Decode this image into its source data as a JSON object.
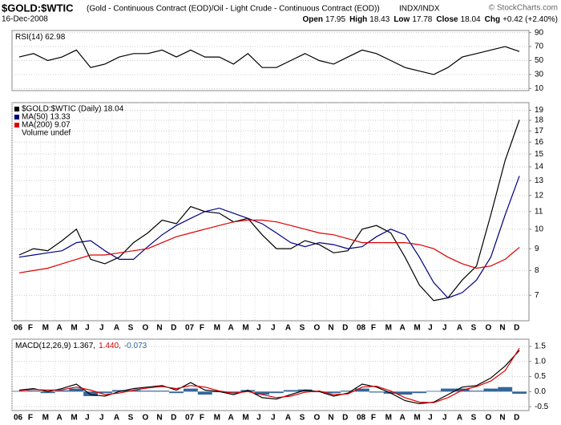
{
  "header": {
    "symbol": "$GOLD:$WTIC",
    "description": "(Gold - Continuous Contract (EOD)/Oil - Light Crude - Continuous Contract (EOD))",
    "exchange": "INDX/INDX",
    "date": "16-Dec-2008",
    "copyright": "© StockCharts.com",
    "quote": [
      {
        "label": "Open",
        "value": "17.95"
      },
      {
        "label": "High",
        "value": "18.43"
      },
      {
        "label": "Low",
        "value": "17.78"
      },
      {
        "label": "Close",
        "value": "18.04"
      },
      {
        "label": "Chg",
        "value": "+0.42 (+2.40%)"
      }
    ]
  },
  "chart_data": [
    {
      "type": "line",
      "legend": "inline",
      "ylim": [
        7,
        93
      ],
      "yticks": [
        10,
        30,
        50,
        70,
        90
      ],
      "grid": true,
      "series": [
        {
          "name": "RSI(14) 62.98",
          "color": "#000000",
          "values": [
            55,
            60,
            50,
            55,
            65,
            40,
            45,
            55,
            60,
            60,
            65,
            55,
            65,
            55,
            55,
            45,
            60,
            40,
            40,
            50,
            60,
            50,
            45,
            55,
            65,
            60,
            50,
            40,
            35,
            30,
            40,
            55,
            60,
            65,
            70,
            62.98
          ]
        }
      ]
    },
    {
      "type": "line",
      "legend": "stacked",
      "log_scale": true,
      "ylim": [
        6.1,
        19.8
      ],
      "yticks": [
        7,
        8,
        9,
        10,
        11,
        12,
        13,
        14,
        15,
        16,
        17,
        18,
        19
      ],
      "grid": true,
      "extra_legend": "Volume undef",
      "categories": [
        "06",
        "F",
        "M",
        "A",
        "M",
        "J",
        "J",
        "A",
        "S",
        "O",
        "N",
        "D",
        "07",
        "F",
        "M",
        "A",
        "M",
        "J",
        "J",
        "A",
        "S",
        "O",
        "N",
        "D",
        "08",
        "F",
        "M",
        "A",
        "M",
        "J",
        "J",
        "A",
        "S",
        "O",
        "N",
        "D"
      ],
      "series": [
        {
          "name": "$GOLD:$WTIC (Daily) 18.04",
          "color": "#000000",
          "values": [
            8.7,
            9.0,
            8.9,
            9.4,
            10.0,
            8.5,
            8.3,
            8.6,
            9.3,
            9.8,
            10.5,
            10.3,
            11.3,
            11.0,
            10.9,
            10.4,
            10.6,
            9.7,
            9.0,
            9.0,
            9.4,
            9.2,
            8.8,
            8.9,
            10.0,
            10.2,
            9.8,
            8.6,
            7.4,
            6.8,
            6.9,
            7.6,
            8.2,
            10.8,
            14.5,
            18.04
          ]
        },
        {
          "name": "MA(50) 13.33",
          "color": "#000080",
          "values": [
            8.6,
            8.7,
            8.8,
            8.9,
            9.3,
            9.4,
            8.9,
            8.5,
            8.5,
            9.1,
            9.7,
            10.2,
            10.6,
            11.0,
            11.2,
            10.9,
            10.6,
            10.3,
            9.8,
            9.3,
            9.1,
            9.3,
            9.2,
            9.0,
            9.1,
            9.6,
            10.0,
            9.7,
            8.6,
            7.5,
            6.9,
            7.1,
            7.6,
            8.6,
            10.8,
            13.33
          ]
        },
        {
          "name": "MA(200) 9.07",
          "color": "#dd0000",
          "values": [
            7.9,
            8.0,
            8.1,
            8.3,
            8.5,
            8.7,
            8.7,
            8.8,
            8.9,
            9.0,
            9.3,
            9.6,
            9.8,
            10.0,
            10.2,
            10.4,
            10.5,
            10.5,
            10.4,
            10.2,
            10.0,
            9.8,
            9.7,
            9.5,
            9.3,
            9.3,
            9.3,
            9.3,
            9.2,
            9.0,
            8.6,
            8.3,
            8.1,
            8.2,
            8.5,
            9.07
          ]
        }
      ]
    },
    {
      "type": "line",
      "legend": "inline",
      "ylim": [
        -0.63,
        1.74
      ],
      "yticks": [
        -0.5,
        {
          "value": 0,
          "label": "0.0"
        },
        0.5,
        {
          "value": 1,
          "label": "1.0"
        },
        1.5
      ],
      "grid": true,
      "categories": [
        "06",
        "F",
        "M",
        "A",
        "M",
        "J",
        "J",
        "A",
        "S",
        "O",
        "N",
        "D",
        "07",
        "F",
        "M",
        "A",
        "M",
        "J",
        "J",
        "A",
        "S",
        "O",
        "N",
        "D",
        "08",
        "F",
        "M",
        "A",
        "M",
        "J",
        "J",
        "A",
        "S",
        "O",
        "N",
        "D"
      ],
      "series": [
        {
          "name": "MACD(12,26,9) 1.367,",
          "color": "#000000",
          "values": [
            0.05,
            0.1,
            0,
            0.1,
            0.25,
            -0.1,
            -0.15,
            0,
            0.1,
            0.15,
            0.2,
            0.05,
            0.3,
            0.05,
            0,
            -0.1,
            0.05,
            -0.2,
            -0.25,
            -0.1,
            0.05,
            0,
            -0.15,
            -0.05,
            0.25,
            0.15,
            -0.05,
            -0.3,
            -0.4,
            -0.35,
            -0.1,
            0.15,
            0.2,
            0.45,
            0.85,
            1.367
          ]
        },
        {
          "name": "1.440,",
          "color": "#dd0000",
          "values": [
            0.03,
            0.07,
            0.05,
            0.06,
            0.15,
            0.05,
            -0.1,
            -0.05,
            0.05,
            0.12,
            0.17,
            0.1,
            0.2,
            0.15,
            0.02,
            -0.05,
            0,
            -0.1,
            -0.2,
            -0.15,
            -0.02,
            0.02,
            -0.1,
            -0.08,
            0.15,
            0.18,
            0.02,
            -0.2,
            -0.35,
            -0.37,
            -0.2,
            0.05,
            0.17,
            0.35,
            0.7,
            1.44
          ]
        },
        {
          "name": "-0.073",
          "color": "#336699",
          "style": "histogram",
          "values": [
            0.02,
            0.03,
            -0.05,
            0.04,
            0.1,
            -0.15,
            -0.05,
            0.05,
            0.05,
            0.03,
            0.03,
            -0.05,
            0.1,
            -0.1,
            -0.02,
            -0.05,
            0.05,
            -0.1,
            -0.05,
            0.05,
            0.07,
            -0.02,
            -0.05,
            0.03,
            0.1,
            -0.03,
            -0.07,
            -0.1,
            -0.05,
            0.02,
            0.1,
            0.1,
            0.03,
            0.1,
            0.15,
            -0.073
          ]
        }
      ]
    }
  ]
}
